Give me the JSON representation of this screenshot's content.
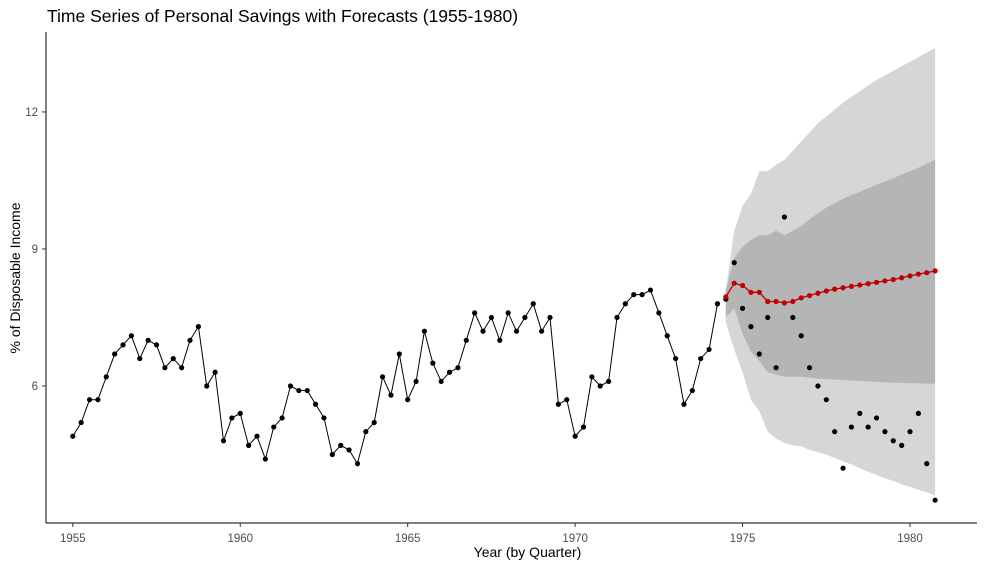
{
  "chart_data": {
    "type": "line",
    "title": "Time Series of Personal Savings with Forecasts (1955-1980)",
    "xlabel": "Year (by Quarter)",
    "ylabel": "% of Disposable Income",
    "xlim": [
      1954.2,
      1982.0
    ],
    "ylim": [
      3.0,
      13.75
    ],
    "x_ticks": [
      1955,
      1960,
      1965,
      1970,
      1975,
      1980
    ],
    "y_ticks": [
      6,
      9,
      12
    ],
    "grid": false,
    "legend": "none",
    "colors": {
      "observed": "#000000",
      "forecast": "#c00000",
      "band_95": "#d6d6d6",
      "band_80": "#b5b5b5"
    },
    "observed": {
      "start": 1955.0,
      "step": 0.25,
      "values": [
        4.9,
        5.2,
        5.7,
        5.7,
        6.2,
        6.7,
        6.9,
        7.1,
        6.6,
        7.0,
        6.9,
        6.4,
        6.6,
        6.4,
        7.0,
        7.3,
        6.0,
        6.3,
        4.8,
        5.3,
        5.4,
        4.7,
        4.9,
        4.4,
        5.1,
        5.3,
        6.0,
        5.9,
        5.9,
        5.6,
        5.3,
        4.5,
        4.7,
        4.6,
        4.3,
        5.0,
        5.2,
        6.2,
        5.8,
        6.7,
        5.7,
        6.1,
        7.2,
        6.5,
        6.1,
        6.3,
        6.4,
        7.0,
        7.6,
        7.2,
        7.5,
        7.0,
        7.6,
        7.2,
        7.5,
        7.8,
        7.2,
        7.5,
        5.6,
        5.7,
        4.9,
        5.1,
        6.2,
        6.0,
        6.1,
        7.5,
        7.8,
        8.0,
        8.0,
        8.1,
        7.6,
        7.1,
        6.6,
        5.6,
        5.9,
        6.6,
        6.8,
        7.8
      ]
    },
    "holdout": {
      "start": 1974.5,
      "step": 0.25,
      "values": [
        7.9,
        8.7,
        7.7,
        7.3,
        6.7,
        7.5,
        6.4,
        9.7,
        7.5,
        7.1,
        6.4,
        6.0,
        5.7,
        5.0,
        4.2,
        5.1,
        5.4,
        5.1,
        5.3,
        5.0,
        4.8,
        4.7,
        5.0,
        5.4,
        4.3,
        3.5
      ]
    },
    "forecast": {
      "start": 1974.5,
      "step": 0.25,
      "values": [
        7.95,
        8.25,
        8.2,
        8.05,
        8.05,
        7.85,
        7.85,
        7.82,
        7.85,
        7.93,
        7.98,
        8.03,
        8.08,
        8.12,
        8.15,
        8.18,
        8.21,
        8.24,
        8.27,
        8.3,
        8.33,
        8.37,
        8.41,
        8.45,
        8.48,
        8.52
      ],
      "lo80": [
        7.5,
        7.7,
        7.15,
        6.75,
        6.55,
        6.3,
        6.25,
        6.2,
        6.2,
        6.2,
        6.18,
        6.16,
        6.15,
        6.14,
        6.13,
        6.12,
        6.11,
        6.1,
        6.09,
        6.08,
        6.07,
        6.07,
        6.06,
        6.06,
        6.05,
        6.05
      ],
      "hi80": [
        8.1,
        8.8,
        9.05,
        9.2,
        9.3,
        9.3,
        9.4,
        9.3,
        9.4,
        9.5,
        9.65,
        9.78,
        9.9,
        10.0,
        10.1,
        10.18,
        10.25,
        10.33,
        10.41,
        10.48,
        10.55,
        10.63,
        10.7,
        10.78,
        10.87,
        10.95
      ],
      "lo95": [
        7.4,
        6.8,
        6.3,
        5.7,
        5.45,
        5.0,
        4.85,
        4.75,
        4.7,
        4.68,
        4.6,
        4.55,
        4.5,
        4.42,
        4.35,
        4.28,
        4.2,
        4.12,
        4.05,
        3.98,
        3.92,
        3.85,
        3.79,
        3.73,
        3.67,
        3.6
      ],
      "hi95": [
        8.1,
        9.4,
        9.95,
        10.2,
        10.7,
        10.7,
        10.85,
        10.95,
        11.15,
        11.35,
        11.55,
        11.75,
        11.9,
        12.05,
        12.2,
        12.33,
        12.45,
        12.58,
        12.7,
        12.8,
        12.9,
        13.0,
        13.1,
        13.2,
        13.3,
        13.4
      ]
    }
  }
}
